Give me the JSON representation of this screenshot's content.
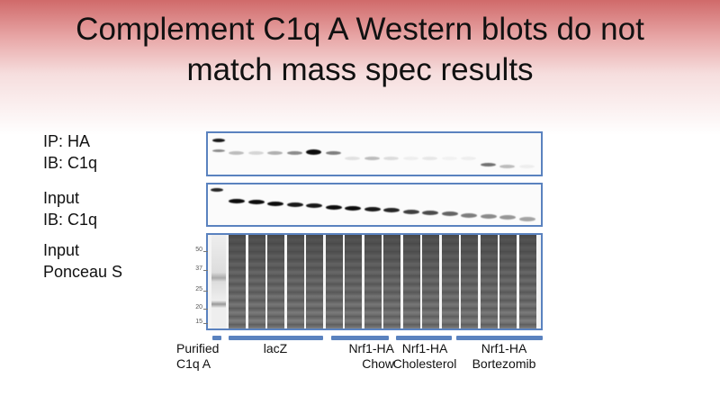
{
  "slide": {
    "title_line1": "Complement C1q A Western blots do not",
    "title_line2": "match mass spec results"
  },
  "rows": [
    {
      "line1": "IP: HA",
      "line2": "IB: C1q"
    },
    {
      "line1": "Input",
      "line2": "IB: C1q"
    },
    {
      "line1": "Input",
      "line2": "Ponceau S"
    }
  ],
  "mw_markers": [
    "50",
    "37",
    "25",
    "20",
    "15"
  ],
  "groups": [
    {
      "line1": "Purified",
      "line2": "C1q A"
    },
    {
      "line1": "lacZ",
      "line2": ""
    },
    {
      "line1": "Nrf1-HA",
      "line2": "Chow"
    },
    {
      "line1": "Nrf1-HA",
      "line2": "Cholesterol"
    },
    {
      "line1": "Nrf1-HA",
      "line2": "Bortezomib"
    }
  ],
  "colors": {
    "accent": "#5a82bf",
    "header": "#d06a6a"
  }
}
